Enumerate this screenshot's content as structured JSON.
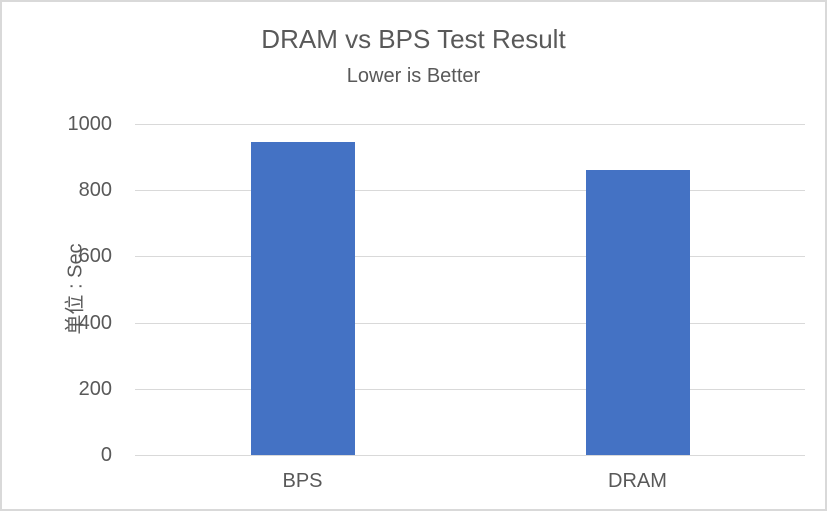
{
  "chart": {
    "title": "DRAM vs BPS Test Result",
    "subtitle": "Lower is Better",
    "y_axis_label": "单位 : Sec"
  },
  "chart_data": {
    "type": "bar",
    "title": "DRAM vs BPS Test Result",
    "subtitle": "Lower is Better",
    "categories": [
      "BPS",
      "DRAM"
    ],
    "values": [
      945,
      860
    ],
    "xlabel": "",
    "ylabel": "单位 : Sec",
    "ylim": [
      0,
      1000
    ],
    "yticks": [
      0,
      200,
      400,
      600,
      800,
      1000
    ],
    "grid": true,
    "legend_position": "none",
    "colors": {
      "bar": "#4472C4",
      "text": "#595959",
      "gridline": "#D9D9D9",
      "axis_line": "#D9D9D9",
      "border": "#D9D9D9",
      "background": "#FFFFFF"
    }
  }
}
